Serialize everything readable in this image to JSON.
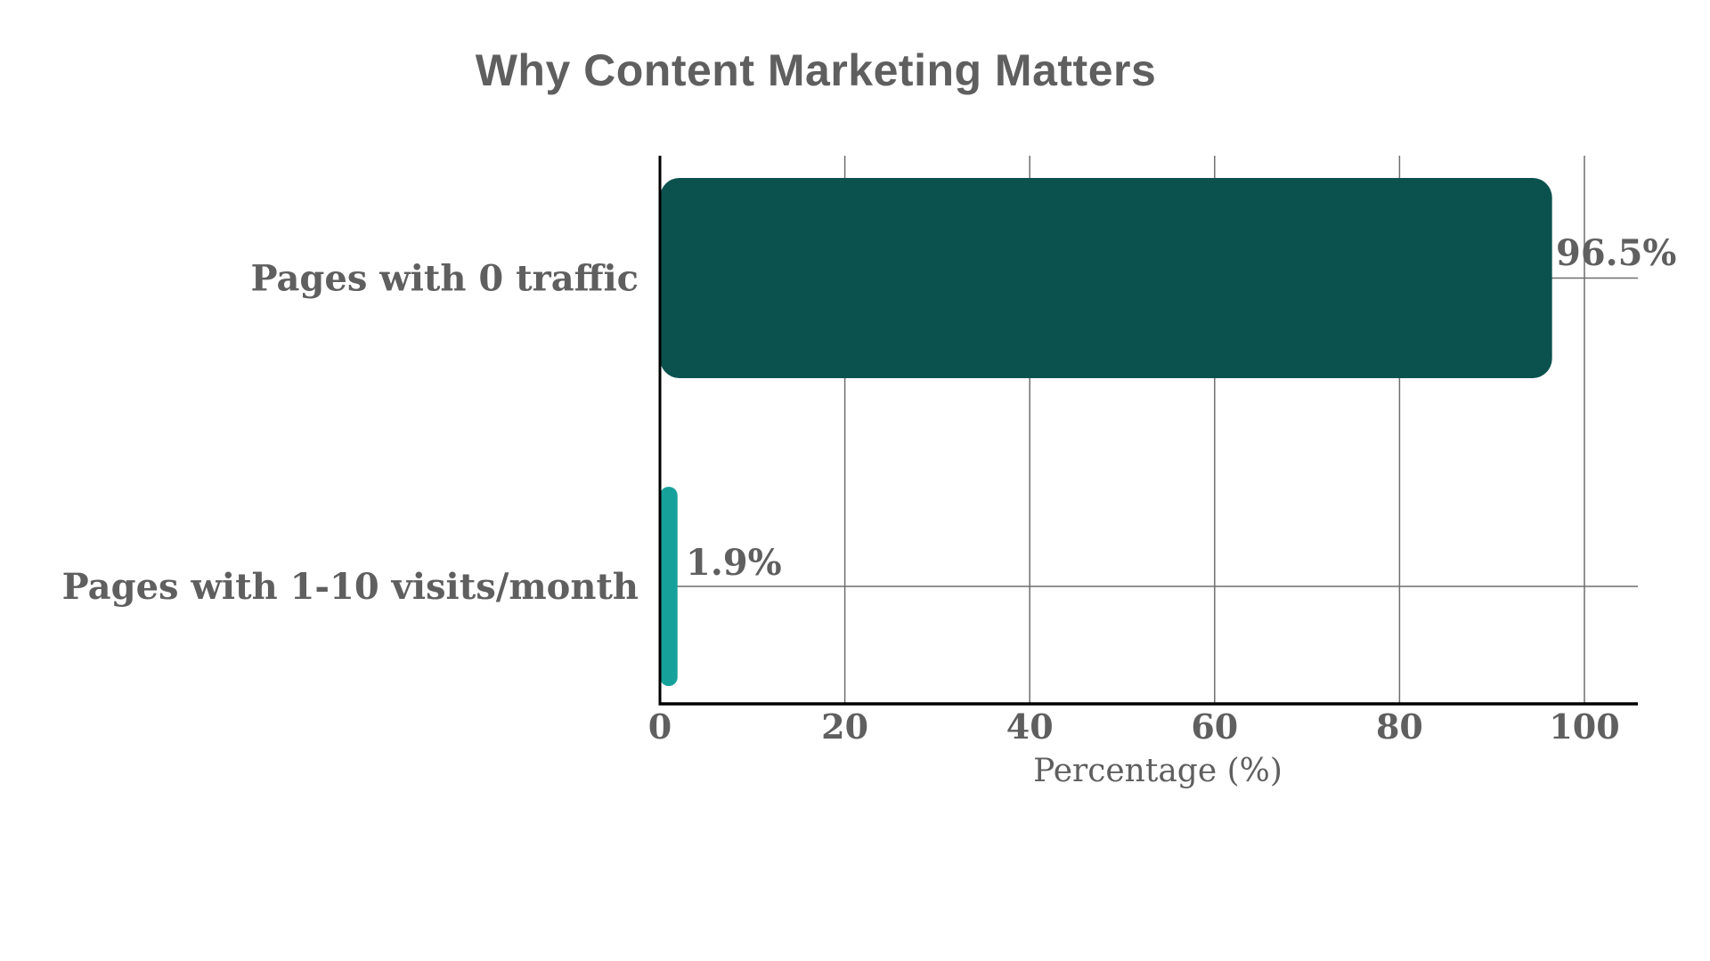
{
  "chart_data": {
    "type": "bar",
    "orientation": "horizontal",
    "title": "Why Content Marketing Matters",
    "xlabel": "Percentage (%)",
    "ylabel": "",
    "categories": [
      "Pages with 0 traffic",
      "Pages with 1-10 visits/month"
    ],
    "values": [
      96.5,
      1.9
    ],
    "data_labels": [
      "96.5%",
      "1.9%"
    ],
    "colors": [
      "#0b524e",
      "#17a19b"
    ],
    "xlim": [
      0,
      105
    ],
    "xticks": [
      0,
      20,
      40,
      60,
      80,
      100
    ],
    "xtick_labels": [
      "0",
      "20",
      "40",
      "60",
      "80",
      "100"
    ],
    "grid": true,
    "legend": null
  },
  "colors": {
    "text": "#5f5f5f",
    "grid": "#6e6e6e",
    "axis": "#000000"
  }
}
